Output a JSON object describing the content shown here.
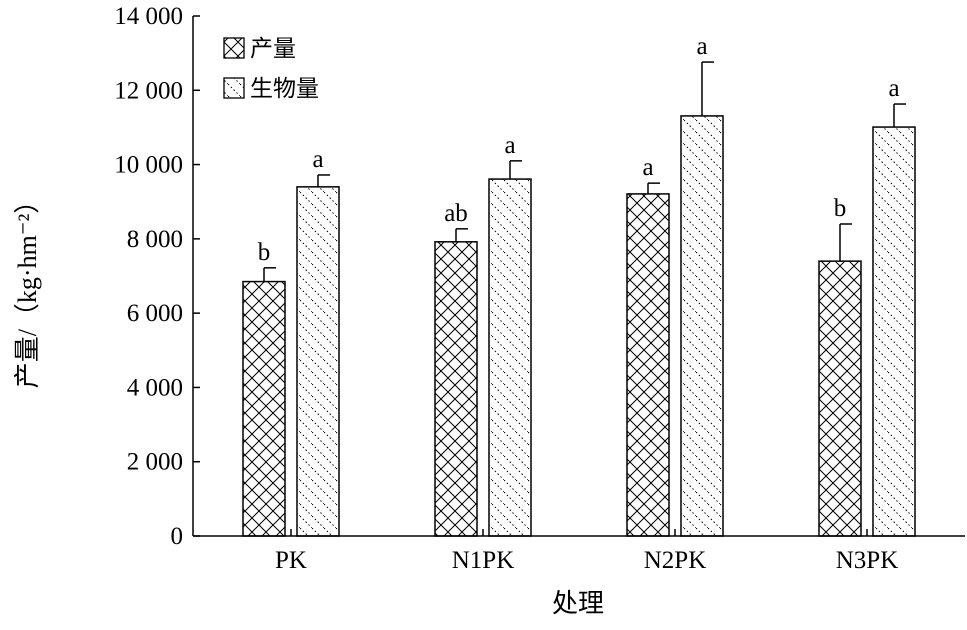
{
  "chart_data": {
    "type": "bar",
    "title": "",
    "xlabel": "处理",
    "ylabel": "产量/（kg·hm⁻²）",
    "ylim": [
      0,
      14000
    ],
    "yticks": [
      0,
      2000,
      4000,
      6000,
      8000,
      10000,
      12000,
      14000
    ],
    "ytick_labels": [
      "0",
      "2 000",
      "4 000",
      "6 000",
      "8 000",
      "10 000",
      "12 000",
      "14 000"
    ],
    "categories": [
      "PK",
      "N1PK",
      "N2PK",
      "N3PK"
    ],
    "legend_position": "top-left",
    "grid": false,
    "series": [
      {
        "name": "产量",
        "pattern": "crosshatch",
        "values": [
          6850,
          7920,
          9210,
          7400
        ],
        "errors": [
          370,
          350,
          290,
          1000
        ],
        "labels": [
          "b",
          "ab",
          "a",
          "b"
        ]
      },
      {
        "name": "生物量",
        "pattern": "dotted-diagonal",
        "values": [
          9400,
          9610,
          11310,
          11010
        ],
        "errors": [
          320,
          490,
          1450,
          620
        ],
        "labels": [
          "a",
          "a",
          "a",
          "a"
        ]
      }
    ]
  }
}
